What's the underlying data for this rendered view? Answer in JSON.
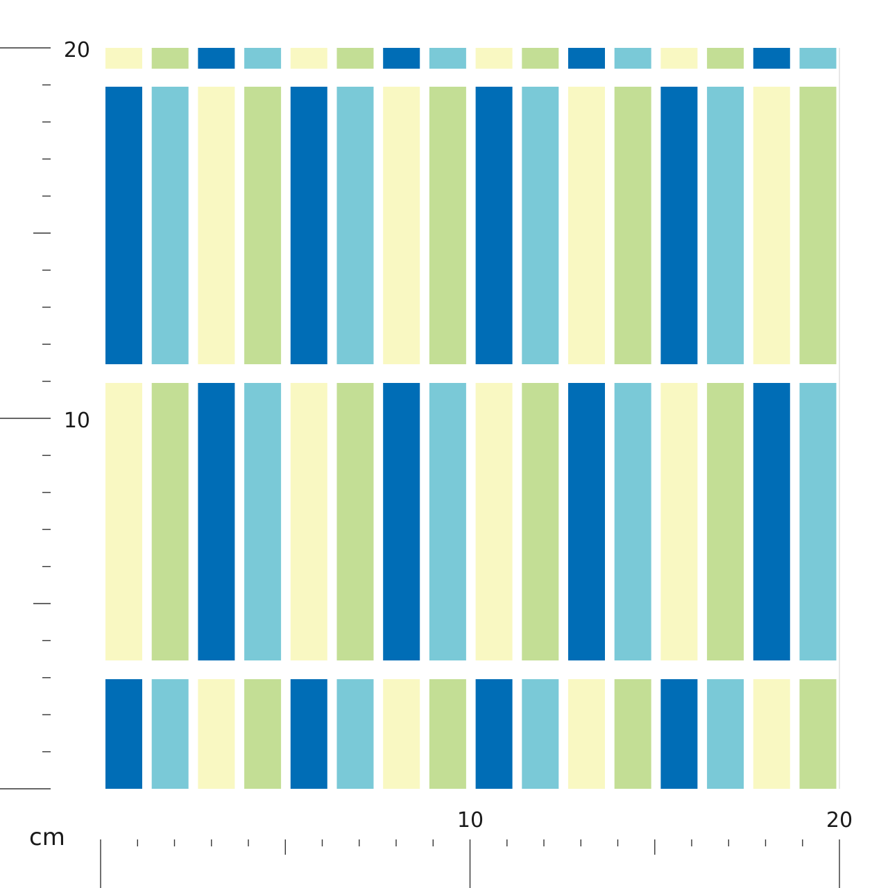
{
  "ruler": {
    "unit_label": "cm",
    "range_cm": [
      0,
      20
    ],
    "left_labels": [
      {
        "value": 20,
        "text": "20"
      },
      {
        "value": 10,
        "text": "10"
      }
    ],
    "bottom_labels": [
      {
        "value": 10,
        "text": "10"
      },
      {
        "value": 20,
        "text": "20"
      }
    ]
  },
  "pattern": {
    "colors": {
      "dark_blue": "#006db6",
      "light_blue": "#7ac9d7",
      "cream": "#f9f8c2",
      "green": "#c3de95",
      "background": "#ffffff",
      "ruler_line": "#333333"
    },
    "columns": 16,
    "rows": [
      {
        "order": [
          "cream",
          "green",
          "dark_blue",
          "light_blue"
        ]
      },
      {
        "order": [
          "dark_blue",
          "light_blue",
          "cream",
          "green"
        ]
      },
      {
        "order": [
          "cream",
          "green",
          "dark_blue",
          "light_blue"
        ]
      },
      {
        "order": [
          "dark_blue",
          "light_blue",
          "cream",
          "green"
        ]
      }
    ]
  }
}
